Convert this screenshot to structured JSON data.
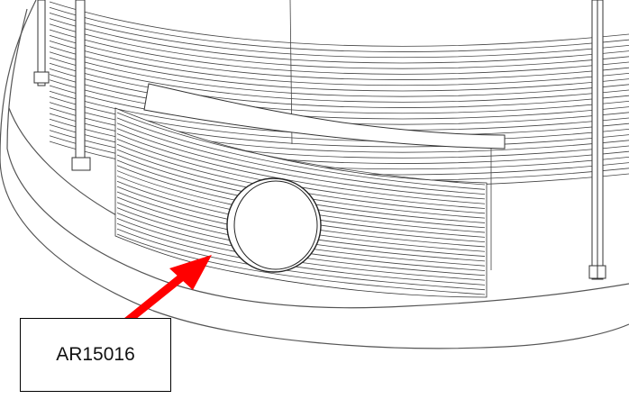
{
  "callout": {
    "part_number": "AR15016",
    "arrow_color": "#ff0000"
  },
  "drawing": {
    "line_color": "#333333",
    "background": "#ffffff"
  }
}
